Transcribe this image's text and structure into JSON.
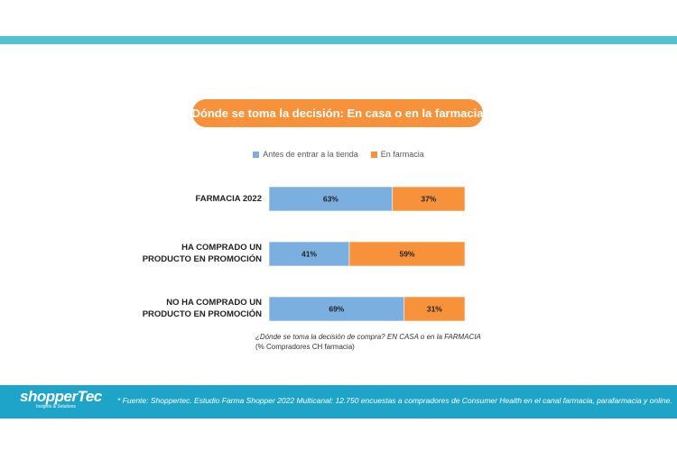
{
  "colors": {
    "band": "#4fc3d4",
    "accent": "#f7923a",
    "series_blue": "#7bafe0",
    "series_orange": "#f7923a",
    "footer": "#1fa4c9"
  },
  "title": "Dónde se toma la decisión: En casa o en la farmacia",
  "question": {
    "text": "¿Dónde se toma la decisión de compra? EN CASA o en la FARMACIA",
    "base": "(% Compradores CH farmacia)"
  },
  "footer": {
    "logo": "shopperTec",
    "tagline": "Insights & Solutions",
    "note": "* Fuente: Shoppertec. Estudio Farma Shopper 2022 Multicanal: 12.750 encuestas a compradores de Consumer Health en el canal farmacia, parafarmacia y online."
  },
  "chart_data": {
    "type": "bar",
    "orientation": "horizontal",
    "stacked": true,
    "normalized_percent": true,
    "categories": [
      [
        "FARMACIA 2022"
      ],
      [
        "HA COMPRADO UN",
        "PRODUCTO EN PROMOCIÓN"
      ],
      [
        "NO HA COMPRADO UN",
        "PRODUCTO EN PROMOCIÓN"
      ]
    ],
    "series": [
      {
        "name": "Antes de entrar a la tienda",
        "values": [
          63,
          41,
          69
        ],
        "labels": [
          "63%",
          "41%",
          "69%"
        ],
        "color": "#7bafe0"
      },
      {
        "name": "En farmacia",
        "values": [
          37,
          59,
          31
        ],
        "labels": [
          "37%",
          "59%",
          "31%"
        ],
        "color": "#f7923a"
      }
    ],
    "xlim": [
      0,
      100
    ],
    "legend": "top-center",
    "grid": false
  }
}
